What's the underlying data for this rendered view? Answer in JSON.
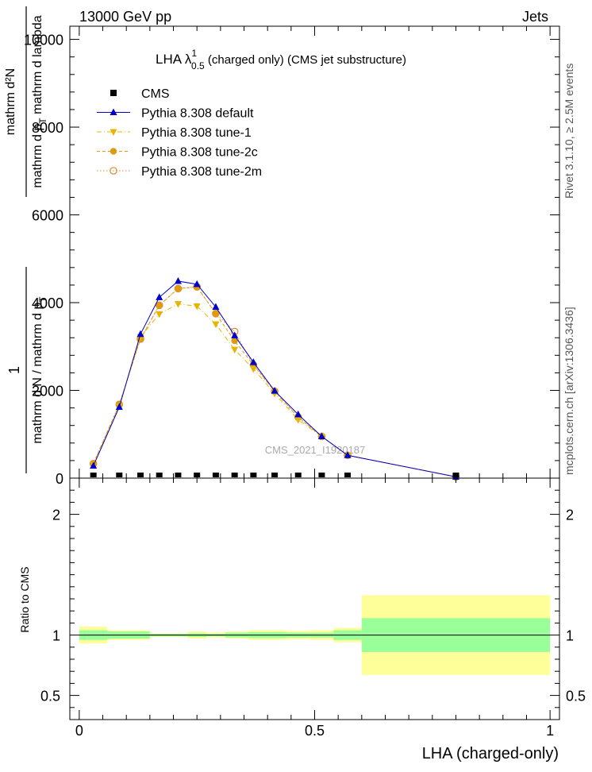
{
  "header": {
    "left": "13000 GeV pp",
    "right": "Jets"
  },
  "side_labels": {
    "rivet": "Rivet 3.1.10, ≥ 2.5M events",
    "mcplots": "mcplots.cern.ch [arXiv:1306.3436]"
  },
  "watermark": "CMS_2021_I1920187",
  "chart_data": [
    {
      "type": "scatter",
      "title": {
        "lead": "LHA λ",
        "sup": "1",
        "sub": "0.5",
        "tail": " (charged only) (CMS jet substructure)"
      },
      "ylabel": {
        "num": "1",
        "den": "mathrm d N / mathrm d p",
        "den_sub": "T",
        "num2": "mathrm d²N",
        "den2_a": "mathrm d p",
        "den2_sub": "T",
        "den2_b": " mathrm d lambda"
      },
      "xlim": [
        -0.02,
        1.02
      ],
      "ylim": [
        0,
        10300
      ],
      "yticks": [
        0,
        2000,
        4000,
        6000,
        8000,
        10000
      ],
      "ytick_labels": [
        "0",
        "2000",
        "4000",
        "6000",
        "8000",
        "10000"
      ],
      "legend_position": "top-left",
      "legend": [
        {
          "label": "CMS",
          "color": "#000000",
          "marker": "square",
          "line": "none"
        },
        {
          "label": "Pythia 8.308 default",
          "color": "#0000cc",
          "marker": "triangle-up",
          "line": "solid"
        },
        {
          "label": "Pythia 8.308 tune-1",
          "color": "#e8b400",
          "marker": "triangle-down",
          "line": "dashdot"
        },
        {
          "label": "Pythia 8.308 tune-2c",
          "color": "#e09a10",
          "marker": "circle",
          "line": "dashed"
        },
        {
          "label": "Pythia 8.308 tune-2m",
          "color": "#d98b30",
          "marker": "open-circle",
          "line": "dotted"
        }
      ],
      "series": [
        {
          "name": "CMS",
          "x": [
            0.03,
            0.085,
            0.13,
            0.17,
            0.21,
            0.25,
            0.29,
            0.33,
            0.37,
            0.415,
            0.465,
            0.515,
            0.57,
            0.8
          ],
          "y": [
            20,
            22,
            25,
            28,
            28,
            28,
            26,
            24,
            22,
            18,
            15,
            12,
            8,
            2
          ]
        },
        {
          "name": "Pythia 8.308 default",
          "x": [
            0.03,
            0.085,
            0.13,
            0.17,
            0.21,
            0.25,
            0.29,
            0.33,
            0.37,
            0.415,
            0.465,
            0.515,
            0.57,
            0.8
          ],
          "y": [
            280,
            1620,
            3280,
            4120,
            4490,
            4420,
            3900,
            3250,
            2640,
            1990,
            1450,
            950,
            520,
            30
          ]
        },
        {
          "name": "Pythia 8.308 tune-1",
          "x": [
            0.03,
            0.085,
            0.13,
            0.17,
            0.21,
            0.25,
            0.29,
            0.33,
            0.37,
            0.415,
            0.465,
            0.515,
            0.57,
            0.8
          ],
          "y": [
            310,
            1640,
            3220,
            3740,
            3970,
            3920,
            3510,
            2930,
            2490,
            1930,
            1330,
            950,
            520,
            30
          ]
        },
        {
          "name": "Pythia 8.308 tune-2c",
          "x": [
            0.03,
            0.085,
            0.13,
            0.17,
            0.21,
            0.25,
            0.29,
            0.33,
            0.37,
            0.415,
            0.465,
            0.515,
            0.57,
            0.8
          ],
          "y": [
            330,
            1680,
            3170,
            3940,
            4320,
            4360,
            3750,
            3130,
            2580,
            1980,
            1390,
            950,
            520,
            30
          ]
        },
        {
          "name": "Pythia 8.308 tune-2m",
          "x": [
            0.03,
            0.085,
            0.13,
            0.17,
            0.21,
            0.25,
            0.29,
            0.33,
            0.37,
            0.415,
            0.465,
            0.515,
            0.57,
            0.8
          ],
          "y": [
            330,
            1680,
            3170,
            3940,
            4320,
            4360,
            3750,
            3340,
            2580,
            1980,
            1390,
            950,
            520,
            30
          ]
        }
      ]
    },
    {
      "type": "area",
      "xlabel": "LHA (charged-only)",
      "ylabel": "Ratio to CMS",
      "xlim": [
        -0.02,
        1.02
      ],
      "ylim": [
        0.3,
        2.3
      ],
      "xticks": [
        0,
        0.5,
        1
      ],
      "xtick_labels": [
        "0",
        "0.5",
        "1"
      ],
      "yticks": [
        0.5,
        1,
        2
      ],
      "ytick_labels": [
        "0.5",
        "1",
        "2"
      ],
      "bands": {
        "colors": {
          "inner": "#99ff99",
          "outer": "#ffff99"
        },
        "bins": [
          {
            "lo": 0.0,
            "hi": 0.06,
            "inner": [
              0.96,
              1.04
            ],
            "outer": [
              0.93,
              1.07
            ]
          },
          {
            "lo": 0.06,
            "hi": 0.15,
            "inner": [
              0.97,
              1.03
            ],
            "outer": [
              0.96,
              1.04
            ]
          },
          {
            "lo": 0.15,
            "hi": 0.23,
            "inner": [
              0.99,
              1.01
            ],
            "outer": [
              0.985,
              1.015
            ]
          },
          {
            "lo": 0.23,
            "hi": 0.27,
            "inner": [
              0.985,
              1.015
            ],
            "outer": [
              0.97,
              1.03
            ]
          },
          {
            "lo": 0.27,
            "hi": 0.31,
            "inner": [
              0.99,
              1.01
            ],
            "outer": [
              0.98,
              1.02
            ]
          },
          {
            "lo": 0.31,
            "hi": 0.36,
            "inner": [
              0.98,
              1.02
            ],
            "outer": [
              0.97,
              1.03
            ]
          },
          {
            "lo": 0.36,
            "hi": 0.44,
            "inner": [
              0.975,
              1.025
            ],
            "outer": [
              0.96,
              1.04
            ]
          },
          {
            "lo": 0.44,
            "hi": 0.49,
            "inner": [
              0.98,
              1.02
            ],
            "outer": [
              0.965,
              1.035
            ]
          },
          {
            "lo": 0.49,
            "hi": 0.54,
            "inner": [
              0.98,
              1.02
            ],
            "outer": [
              0.96,
              1.04
            ]
          },
          {
            "lo": 0.54,
            "hi": 0.6,
            "inner": [
              0.96,
              1.04
            ],
            "outer": [
              0.94,
              1.06
            ]
          },
          {
            "lo": 0.6,
            "hi": 1.0,
            "inner": [
              0.86,
              1.14
            ],
            "outer": [
              0.67,
              1.33
            ]
          }
        ]
      },
      "reference_line": 1
    }
  ]
}
